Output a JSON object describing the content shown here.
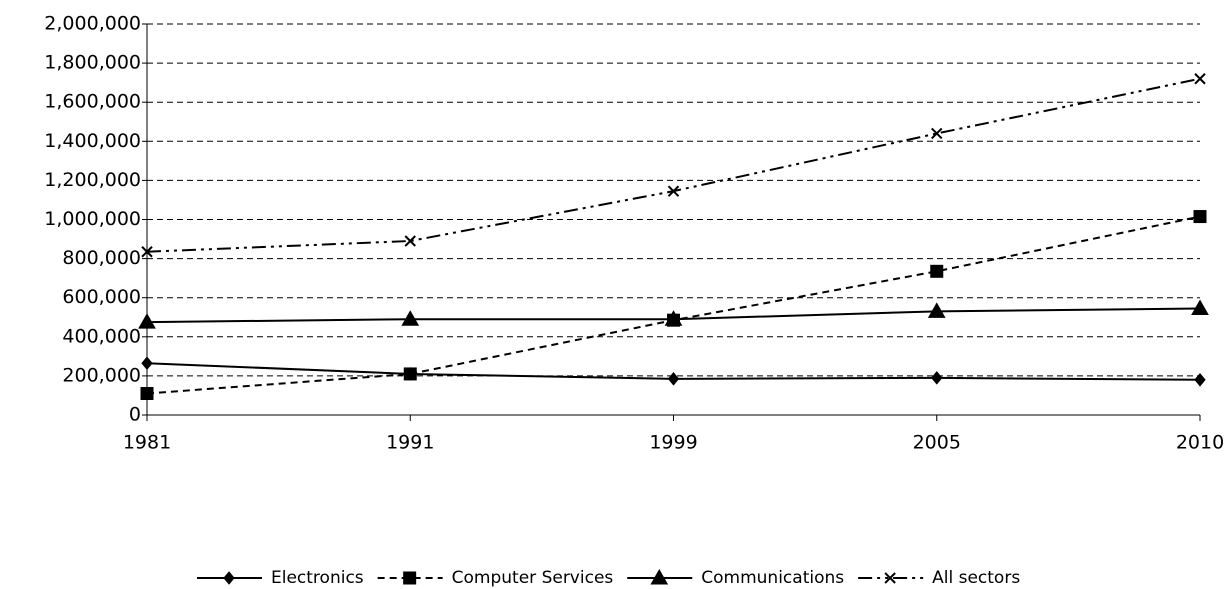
{
  "chart_data": {
    "type": "line",
    "categories": [
      "1981",
      "1991",
      "1999",
      "2005",
      "2010"
    ],
    "series": [
      {
        "name": "Electronics",
        "color": "#000000",
        "marker": "diamond",
        "dash": "solid",
        "values": [
          265000,
          210000,
          185000,
          190000,
          180000
        ]
      },
      {
        "name": "Computer Services",
        "color": "#000000",
        "marker": "square",
        "dash": "dashed",
        "values": [
          110000,
          210000,
          485000,
          735000,
          1015000
        ]
      },
      {
        "name": "Communications",
        "color": "#000000",
        "marker": "triangle",
        "dash": "solid",
        "values": [
          475000,
          490000,
          490000,
          530000,
          545000
        ]
      },
      {
        "name": "All sectors",
        "color": "#000000",
        "marker": "x",
        "dash": "dash-dot-dot",
        "values": [
          835000,
          890000,
          1145000,
          1440000,
          1720000
        ]
      }
    ],
    "ylim": [
      0,
      2000000
    ],
    "yticks": [
      0,
      {
        "value": 200000,
        "label": "200,000"
      },
      {
        "value": 400000,
        "label": "400,000"
      },
      {
        "value": 600000,
        "label": "600,000"
      },
      {
        "value": 800000,
        "label": "800,000"
      },
      {
        "value": 1000000,
        "label": "1,000,000"
      },
      {
        "value": 1200000,
        "label": "1,200,000"
      },
      {
        "value": 1400000,
        "label": "1,400,000"
      },
      {
        "value": 1600000,
        "label": "1,600,000"
      },
      {
        "value": 1800000,
        "label": "1,800,000"
      },
      {
        "value": 2000000,
        "label": "2,000,000"
      }
    ],
    "grid": true,
    "legend": "bottom"
  }
}
